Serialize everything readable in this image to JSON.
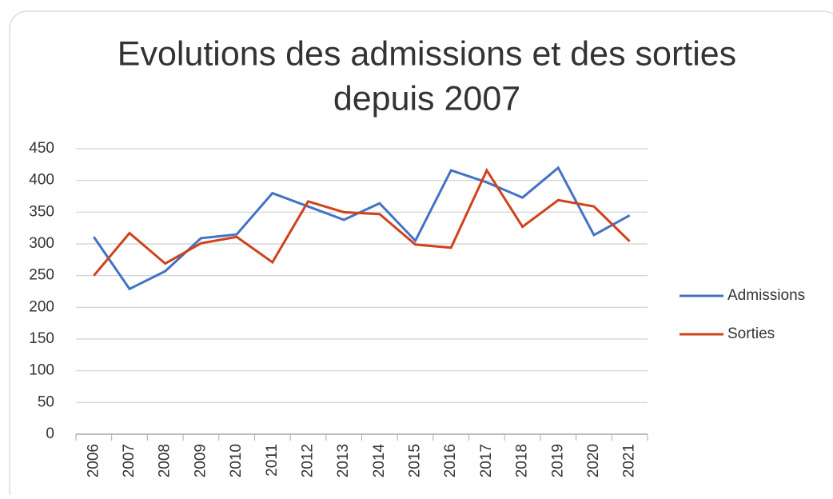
{
  "chart_data": {
    "type": "line",
    "title": "Evolutions des admissions et des sorties",
    "subtitle": "depuis 2007",
    "categories": [
      "2006",
      "2007",
      "2008",
      "2009",
      "2010",
      "2011",
      "2012",
      "2013",
      "2014",
      "2015",
      "2016",
      "2017",
      "2018",
      "2019",
      "2020",
      "2021"
    ],
    "series": [
      {
        "name": "Admissions",
        "color": "#4472c4",
        "values": [
          311,
          229,
          257,
          309,
          315,
          380,
          359,
          338,
          364,
          305,
          416,
          397,
          373,
          420,
          314,
          345
        ]
      },
      {
        "name": "Sorties",
        "color": "#d0421b",
        "values": [
          250,
          317,
          269,
          301,
          311,
          271,
          367,
          350,
          347,
          299,
          294,
          416,
          327,
          369,
          359,
          304
        ]
      }
    ],
    "ylim": [
      0,
      450
    ],
    "yticks": [
      0,
      50,
      100,
      150,
      200,
      250,
      300,
      350,
      400,
      450
    ],
    "grid": true,
    "legend": "right"
  }
}
